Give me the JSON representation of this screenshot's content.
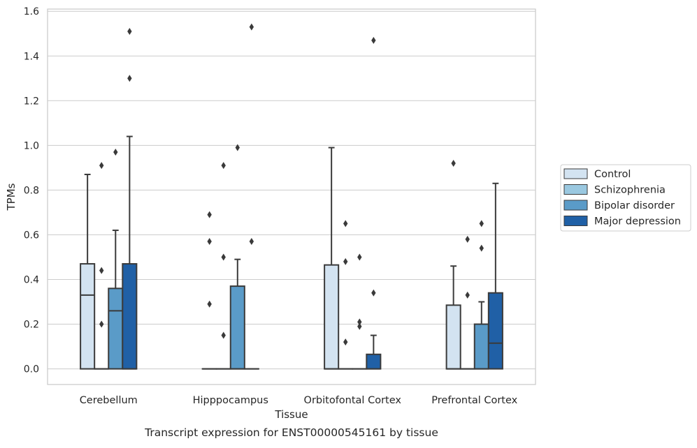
{
  "caption": "Transcript expression for ENST00000545161 by tissue",
  "colors": {
    "Control": "#d3e3f1",
    "Schizophrenia": "#9ac8e0",
    "Bipolar disorder": "#5a9bc8",
    "Major depression": "#2060a6",
    "grid": "#cccccc",
    "frame": "#cccccc",
    "edge": "#3a3a3a"
  },
  "chart_data": {
    "type": "box",
    "title": "",
    "xlabel": "Tissue",
    "ylabel": "TPMs",
    "ylim": [
      -0.07,
      1.61
    ],
    "yticks": [
      0.0,
      0.2,
      0.4,
      0.6,
      0.8,
      1.0,
      1.2,
      1.4,
      1.6
    ],
    "grid": true,
    "legend": "right",
    "categories": [
      "Cerebellum",
      "Hipppocampus",
      "Orbitofontal Cortex",
      "Prefrontal Cortex"
    ],
    "series": [
      {
        "name": "Control",
        "boxes": [
          {
            "q1": 0.0,
            "median": 0.33,
            "q3": 0.47,
            "whislo": 0.0,
            "whishi": 0.87,
            "fliers": []
          },
          {
            "q1": 0.0,
            "median": 0.0,
            "q3": 0.0,
            "whislo": 0.0,
            "whishi": 0.0,
            "fliers": [
              0.29,
              0.57,
              0.69
            ]
          },
          {
            "q1": 0.0,
            "median": 0.0,
            "q3": 0.465,
            "whislo": 0.0,
            "whishi": 0.99,
            "fliers": []
          },
          {
            "q1": 0.0,
            "median": 0.0,
            "q3": 0.285,
            "whislo": 0.0,
            "whishi": 0.46,
            "fliers": [
              0.92
            ]
          }
        ]
      },
      {
        "name": "Schizophrenia",
        "boxes": [
          {
            "q1": 0.0,
            "median": 0.0,
            "q3": 0.0,
            "whislo": 0.0,
            "whishi": 0.0,
            "fliers": [
              0.2,
              0.44,
              0.91
            ]
          },
          {
            "q1": 0.0,
            "median": 0.0,
            "q3": 0.0,
            "whislo": 0.0,
            "whishi": 0.0,
            "fliers": [
              0.15,
              0.5,
              0.91
            ]
          },
          {
            "q1": 0.0,
            "median": 0.0,
            "q3": 0.0,
            "whislo": 0.0,
            "whishi": 0.0,
            "fliers": [
              0.12,
              0.48,
              0.65
            ]
          },
          {
            "q1": 0.0,
            "median": 0.0,
            "q3": 0.0,
            "whislo": 0.0,
            "whishi": 0.0,
            "fliers": [
              0.33,
              0.58
            ]
          }
        ]
      },
      {
        "name": "Bipolar disorder",
        "boxes": [
          {
            "q1": 0.0,
            "median": 0.26,
            "q3": 0.36,
            "whislo": 0.0,
            "whishi": 0.62,
            "fliers": [
              0.97
            ]
          },
          {
            "q1": 0.0,
            "median": 0.0,
            "q3": 0.37,
            "whislo": 0.0,
            "whishi": 0.49,
            "fliers": [
              0.99
            ]
          },
          {
            "q1": 0.0,
            "median": 0.0,
            "q3": 0.0,
            "whislo": 0.0,
            "whishi": 0.0,
            "fliers": [
              0.19,
              0.21,
              0.5
            ]
          },
          {
            "q1": 0.0,
            "median": 0.0,
            "q3": 0.2,
            "whislo": 0.0,
            "whishi": 0.3,
            "fliers": [
              0.54,
              0.65
            ]
          }
        ]
      },
      {
        "name": "Major depression",
        "boxes": [
          {
            "q1": 0.0,
            "median": 0.0,
            "q3": 0.47,
            "whislo": 0.0,
            "whishi": 1.04,
            "fliers": [
              1.3,
              1.51
            ]
          },
          {
            "q1": 0.0,
            "median": 0.0,
            "q3": 0.0,
            "whislo": 0.0,
            "whishi": 0.0,
            "fliers": [
              0.57,
              1.53
            ]
          },
          {
            "q1": 0.0,
            "median": 0.0,
            "q3": 0.065,
            "whislo": 0.0,
            "whishi": 0.15,
            "fliers": [
              0.34,
              1.47
            ]
          },
          {
            "q1": 0.0,
            "median": 0.115,
            "q3": 0.34,
            "whislo": 0.0,
            "whishi": 0.83,
            "fliers": []
          }
        ]
      }
    ]
  }
}
